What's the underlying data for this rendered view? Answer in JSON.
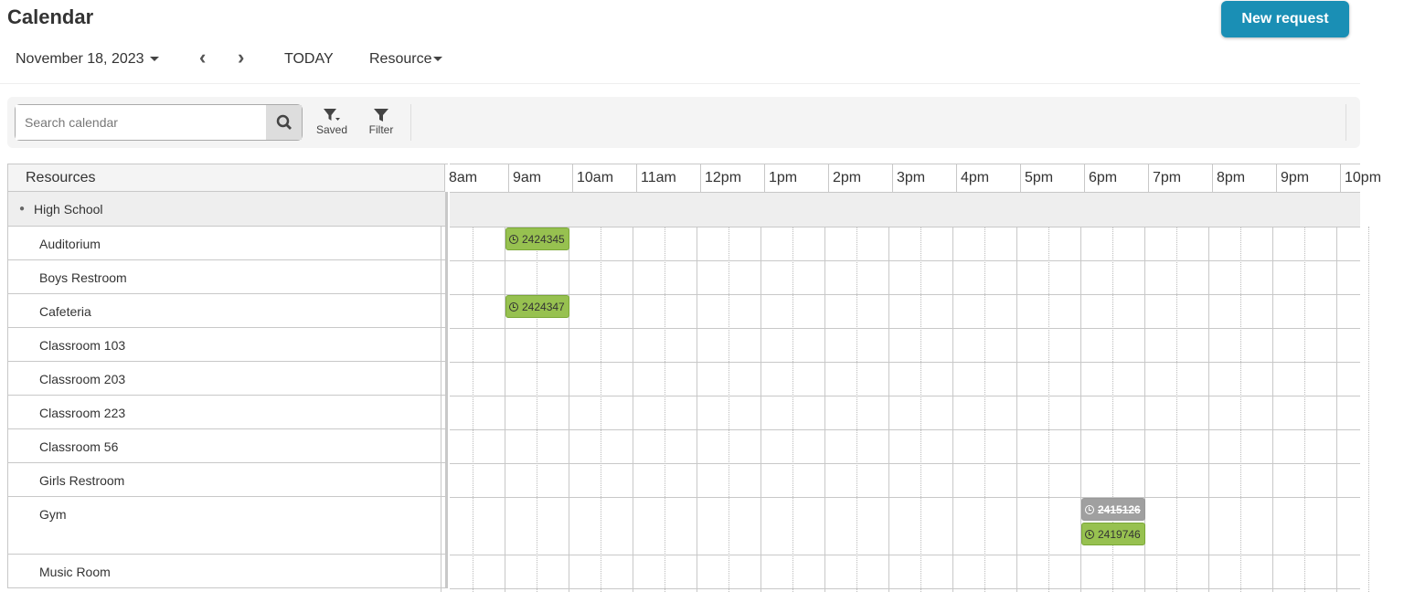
{
  "header": {
    "title": "Calendar",
    "new_request": "New request"
  },
  "nav": {
    "date": "November 18, 2023",
    "today": "TODAY",
    "view": "Resource"
  },
  "toolbar": {
    "search_placeholder": "Search calendar",
    "saved": "Saved",
    "filter": "Filter"
  },
  "grid": {
    "resources_header": "Resources",
    "group": "High School",
    "hours": [
      "8am",
      "9am",
      "10am",
      "11am",
      "12pm",
      "1pm",
      "2pm",
      "3pm",
      "4pm",
      "5pm",
      "6pm",
      "7pm",
      "8pm",
      "9pm",
      "10pm"
    ],
    "resources": [
      "Auditorium",
      "Boys Restroom",
      "Cafeteria",
      "Classroom 103",
      "Classroom 203",
      "Classroom 223",
      "Classroom 56",
      "Girls Restroom",
      "Gym",
      "Music Room"
    ],
    "events": [
      {
        "id": "2424345",
        "resource": "Auditorium",
        "start": "9am",
        "end": "10am",
        "status": "approved"
      },
      {
        "id": "2424347",
        "resource": "Cafeteria",
        "start": "9am",
        "end": "10am",
        "status": "approved"
      },
      {
        "id": "2415126",
        "resource": "Gym",
        "start": "6pm",
        "end": "7pm",
        "status": "cancelled"
      },
      {
        "id": "2419746",
        "resource": "Gym",
        "start": "6pm",
        "end": "7pm",
        "status": "approved"
      }
    ]
  },
  "colors": {
    "accent": "#1a8fb5",
    "approved": "#97c150",
    "cancelled": "#a0a0a0"
  }
}
